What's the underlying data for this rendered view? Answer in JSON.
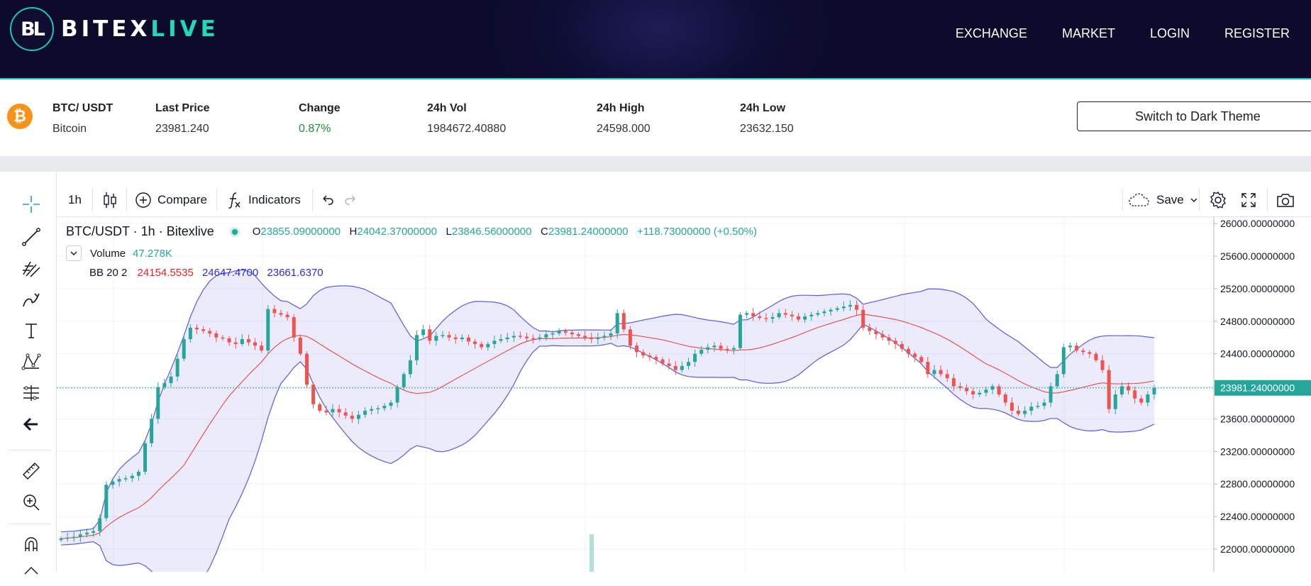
{
  "brand": {
    "logo_mark": "BL",
    "name_part1": "BITEX",
    "name_part2": "LIVE"
  },
  "nav": {
    "items": [
      "EXCHANGE",
      "MARKET",
      "LOGIN",
      "REGISTER"
    ]
  },
  "ticker": {
    "pair": "BTC/ USDT",
    "coin_name": "Bitcoin",
    "last_price_label": "Last Price",
    "last_price": "23981.240",
    "change_label": "Change",
    "change": "0.87%",
    "vol_label": "24h Vol",
    "vol": "1984672.40880",
    "high_label": "24h High",
    "high": "24598.000",
    "low_label": "24h Low",
    "low": "23632.150",
    "theme_button": "Switch to Dark Theme"
  },
  "toolbar": {
    "interval": "1h",
    "compare": "Compare",
    "indicators": "Indicators",
    "save": "Save"
  },
  "legend": {
    "symbol": "BTC/USDT · 1h · Bitexlive",
    "open_label": "O",
    "open": "23855.09000000",
    "high_label": "H",
    "high": "24042.37000000",
    "low_label": "L",
    "low": "23846.56000000",
    "close_label": "C",
    "close": "23981.24000000",
    "change": "+118.73000000 (+0.50%)",
    "volume_label": "Volume",
    "volume": "47.278K",
    "bb_label": "BB 20 2",
    "bb_mid": "24154.5535",
    "bb_upper": "24647.4700",
    "bb_lower": "23661.6370"
  },
  "colors": {
    "up": "#26a69a",
    "down": "#ef5350",
    "bb_mid": "#e8494a",
    "bb_band": "#5b5be0",
    "accent": "#1ec8b0"
  },
  "chart_data": {
    "type": "candlestick",
    "symbol": "BTC/USDT",
    "interval": "1h",
    "y_ticks": [
      "26000.00000000",
      "25600.00000000",
      "25200.00000000",
      "24800.00000000",
      "24400.00000000",
      "24000.00000000",
      "23600.00000000",
      "23200.00000000",
      "22800.00000000",
      "22400.00000000",
      "22000.00000000"
    ],
    "last_price_tag": "23981.24000000",
    "ylim": [
      21720,
      26080
    ],
    "close_series": [
      22130,
      22140,
      22150,
      22180,
      22200,
      22220,
      22380,
      22790,
      22830,
      22860,
      22870,
      22900,
      22950,
      23300,
      23600,
      23990,
      24040,
      24120,
      24340,
      24580,
      24720,
      24700,
      24680,
      24650,
      24600,
      24590,
      24540,
      24520,
      24580,
      24540,
      24500,
      24440,
      24950,
      24900,
      24880,
      24850,
      24600,
      24400,
      24020,
      23780,
      23700,
      23680,
      23720,
      23680,
      23640,
      23600,
      23650,
      23700,
      23720,
      23730,
      23760,
      23800,
      23990,
      24150,
      24320,
      24630,
      24700,
      24560,
      24620,
      24630,
      24600,
      24580,
      24600,
      24550,
      24520,
      24480,
      24520,
      24560,
      24580,
      24600,
      24620,
      24610,
      24590,
      24580,
      24600,
      24640,
      24650,
      24680,
      24660,
      24640,
      24620,
      24600,
      24580,
      24600,
      24620,
      24650,
      24900,
      24700,
      24500,
      24420,
      24380,
      24360,
      24330,
      24280,
      24250,
      24200,
      24250,
      24300,
      24400,
      24450,
      24480,
      24500,
      24460,
      24450,
      24470,
      24880,
      24900,
      24860,
      24840,
      24830,
      24850,
      24900,
      24880,
      24860,
      24820,
      24860,
      24880,
      24900,
      24920,
      24940,
      24960,
      24980,
      25000,
      24940,
      24720,
      24680,
      24640,
      24600,
      24560,
      24520,
      24460,
      24400,
      24360,
      24300,
      24150,
      24200,
      24150,
      24100,
      24000,
      23980,
      23940,
      23900,
      23920,
      23960,
      24000,
      23900,
      23800,
      23700,
      23660,
      23700,
      23750,
      23760,
      23800,
      24000,
      24150,
      24480,
      24500,
      24440,
      24420,
      24400,
      24320,
      24200,
      23720,
      23900,
      24000,
      23950,
      23850,
      23800,
      23900,
      23981
    ]
  }
}
